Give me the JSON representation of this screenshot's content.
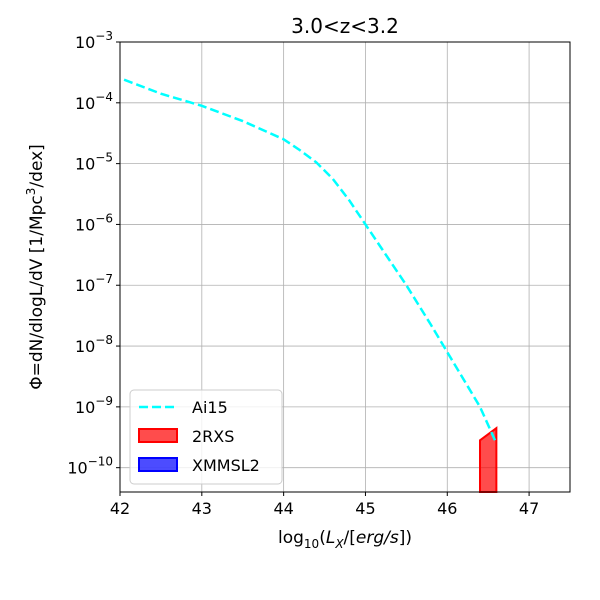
{
  "chart_data": {
    "type": "area",
    "title": "3.0<z<3.2",
    "xlabel": {
      "prefix": "log",
      "sub": "10",
      "open": "(",
      "var": "L",
      "varsub": "X",
      "unitslash": "/[",
      "unit": "erg/s",
      "close": "])"
    },
    "ylabel": {
      "text": "Φ=dN/dlogL/dV [1/Mpc",
      "sup": "3",
      "tail": "/dex]"
    },
    "xlim": [
      42,
      47.5
    ],
    "ylim_log10": [
      -10.4,
      -3
    ],
    "xticks": [
      42,
      43,
      44,
      45,
      46,
      47
    ],
    "yticks": [
      {
        "value": -3,
        "base": "10",
        "exp": "−3"
      },
      {
        "value": -4,
        "base": "10",
        "exp": "−4"
      },
      {
        "value": -5,
        "base": "10",
        "exp": "−5"
      },
      {
        "value": -6,
        "base": "10",
        "exp": "−6"
      },
      {
        "value": -7,
        "base": "10",
        "exp": "−7"
      },
      {
        "value": -8,
        "base": "10",
        "exp": "−8"
      },
      {
        "value": -9,
        "base": "10",
        "exp": "−9"
      },
      {
        "value": -10,
        "base": "10",
        "exp": "−10"
      }
    ],
    "grid": true,
    "legend_position": "lower-left",
    "series": [
      {
        "name": "Ai15",
        "kind": "line",
        "style": "dashed",
        "color": "#00ffff",
        "x": [
          42.05,
          42.5,
          43.0,
          43.5,
          44.0,
          44.2,
          44.4,
          44.6,
          44.8,
          45.0,
          45.2,
          45.5,
          45.8,
          46.0,
          46.2,
          46.4,
          46.6
        ],
        "log10_y": [
          -3.62,
          -3.85,
          -4.05,
          -4.3,
          -4.6,
          -4.78,
          -4.98,
          -5.25,
          -5.6,
          -6.0,
          -6.4,
          -7.0,
          -7.65,
          -8.1,
          -8.55,
          -9.0,
          -9.6
        ]
      },
      {
        "name": "2RXS",
        "kind": "band",
        "color": "#ff0000",
        "x": [
          46.4,
          46.6
        ],
        "log10_upper": [
          -9.55,
          -9.35
        ],
        "log10_lower": [
          -10.4,
          -10.4
        ]
      },
      {
        "name": "XMMSL2",
        "kind": "band",
        "color": "#0000ff",
        "x": [],
        "log10_upper": [],
        "log10_lower": []
      }
    ]
  }
}
